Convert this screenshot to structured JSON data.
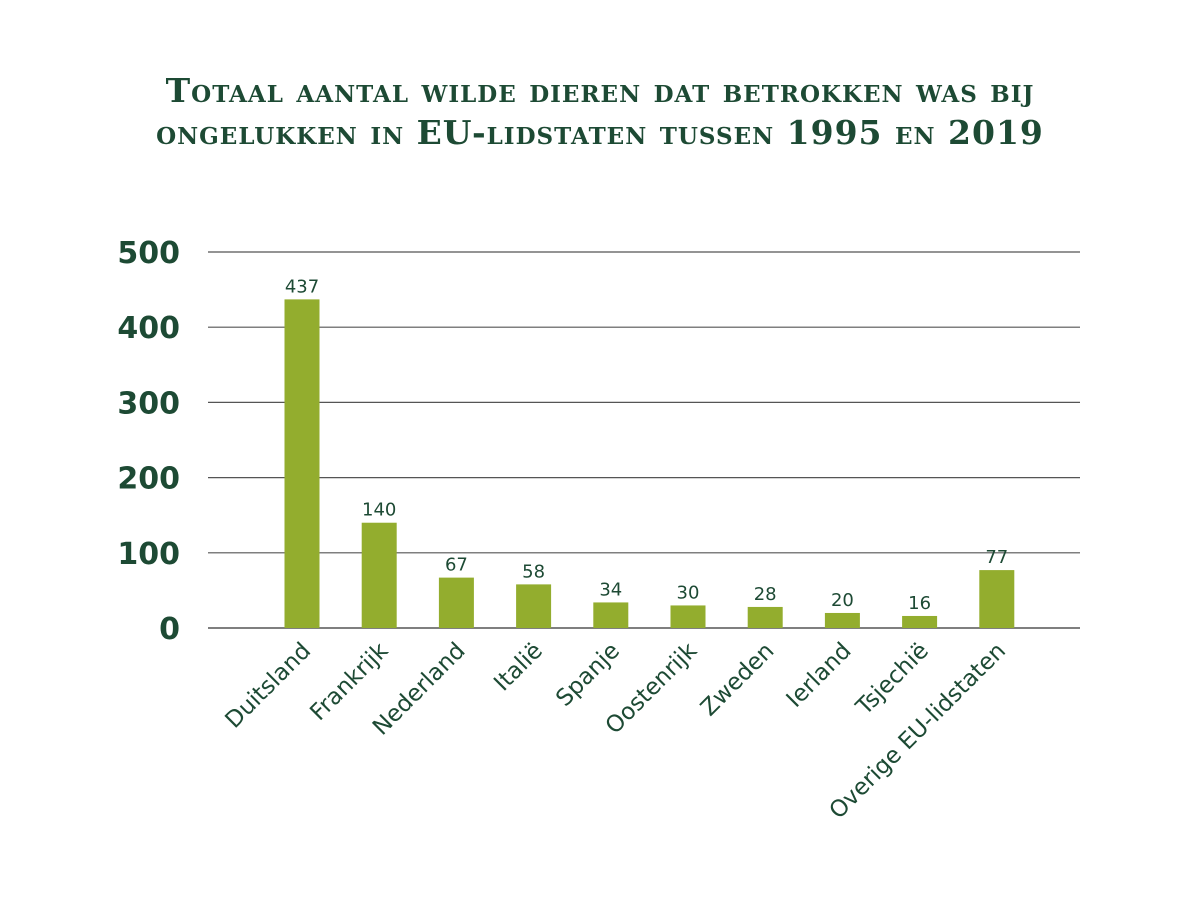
{
  "title": {
    "line1": "Totaal aantal wilde dieren dat betrokken was bij",
    "line2": "ongelukken in EU-lidstaten tussen 1995 en 2019"
  },
  "colors": {
    "bar": "#93ad2e",
    "text": "#1d4a34",
    "grid": "#555555"
  },
  "chart_data": {
    "type": "bar",
    "title": "Totaal aantal wilde dieren dat betrokken was bij ongelukken in EU-lidstaten tussen 1995 en 2019",
    "categories": [
      "Duitsland",
      "Frankrijk",
      "Nederland",
      "Italië",
      "Spanje",
      "Oostenrijk",
      "Zweden",
      "Ierland",
      "Tsjechië",
      "Overige EU-lidstaten"
    ],
    "values": [
      437,
      140,
      67,
      58,
      34,
      30,
      28,
      20,
      16,
      77
    ],
    "ylim": [
      0,
      500
    ],
    "yticks": [
      0,
      100,
      200,
      300,
      400,
      500
    ],
    "grid": true,
    "legend": "none"
  }
}
